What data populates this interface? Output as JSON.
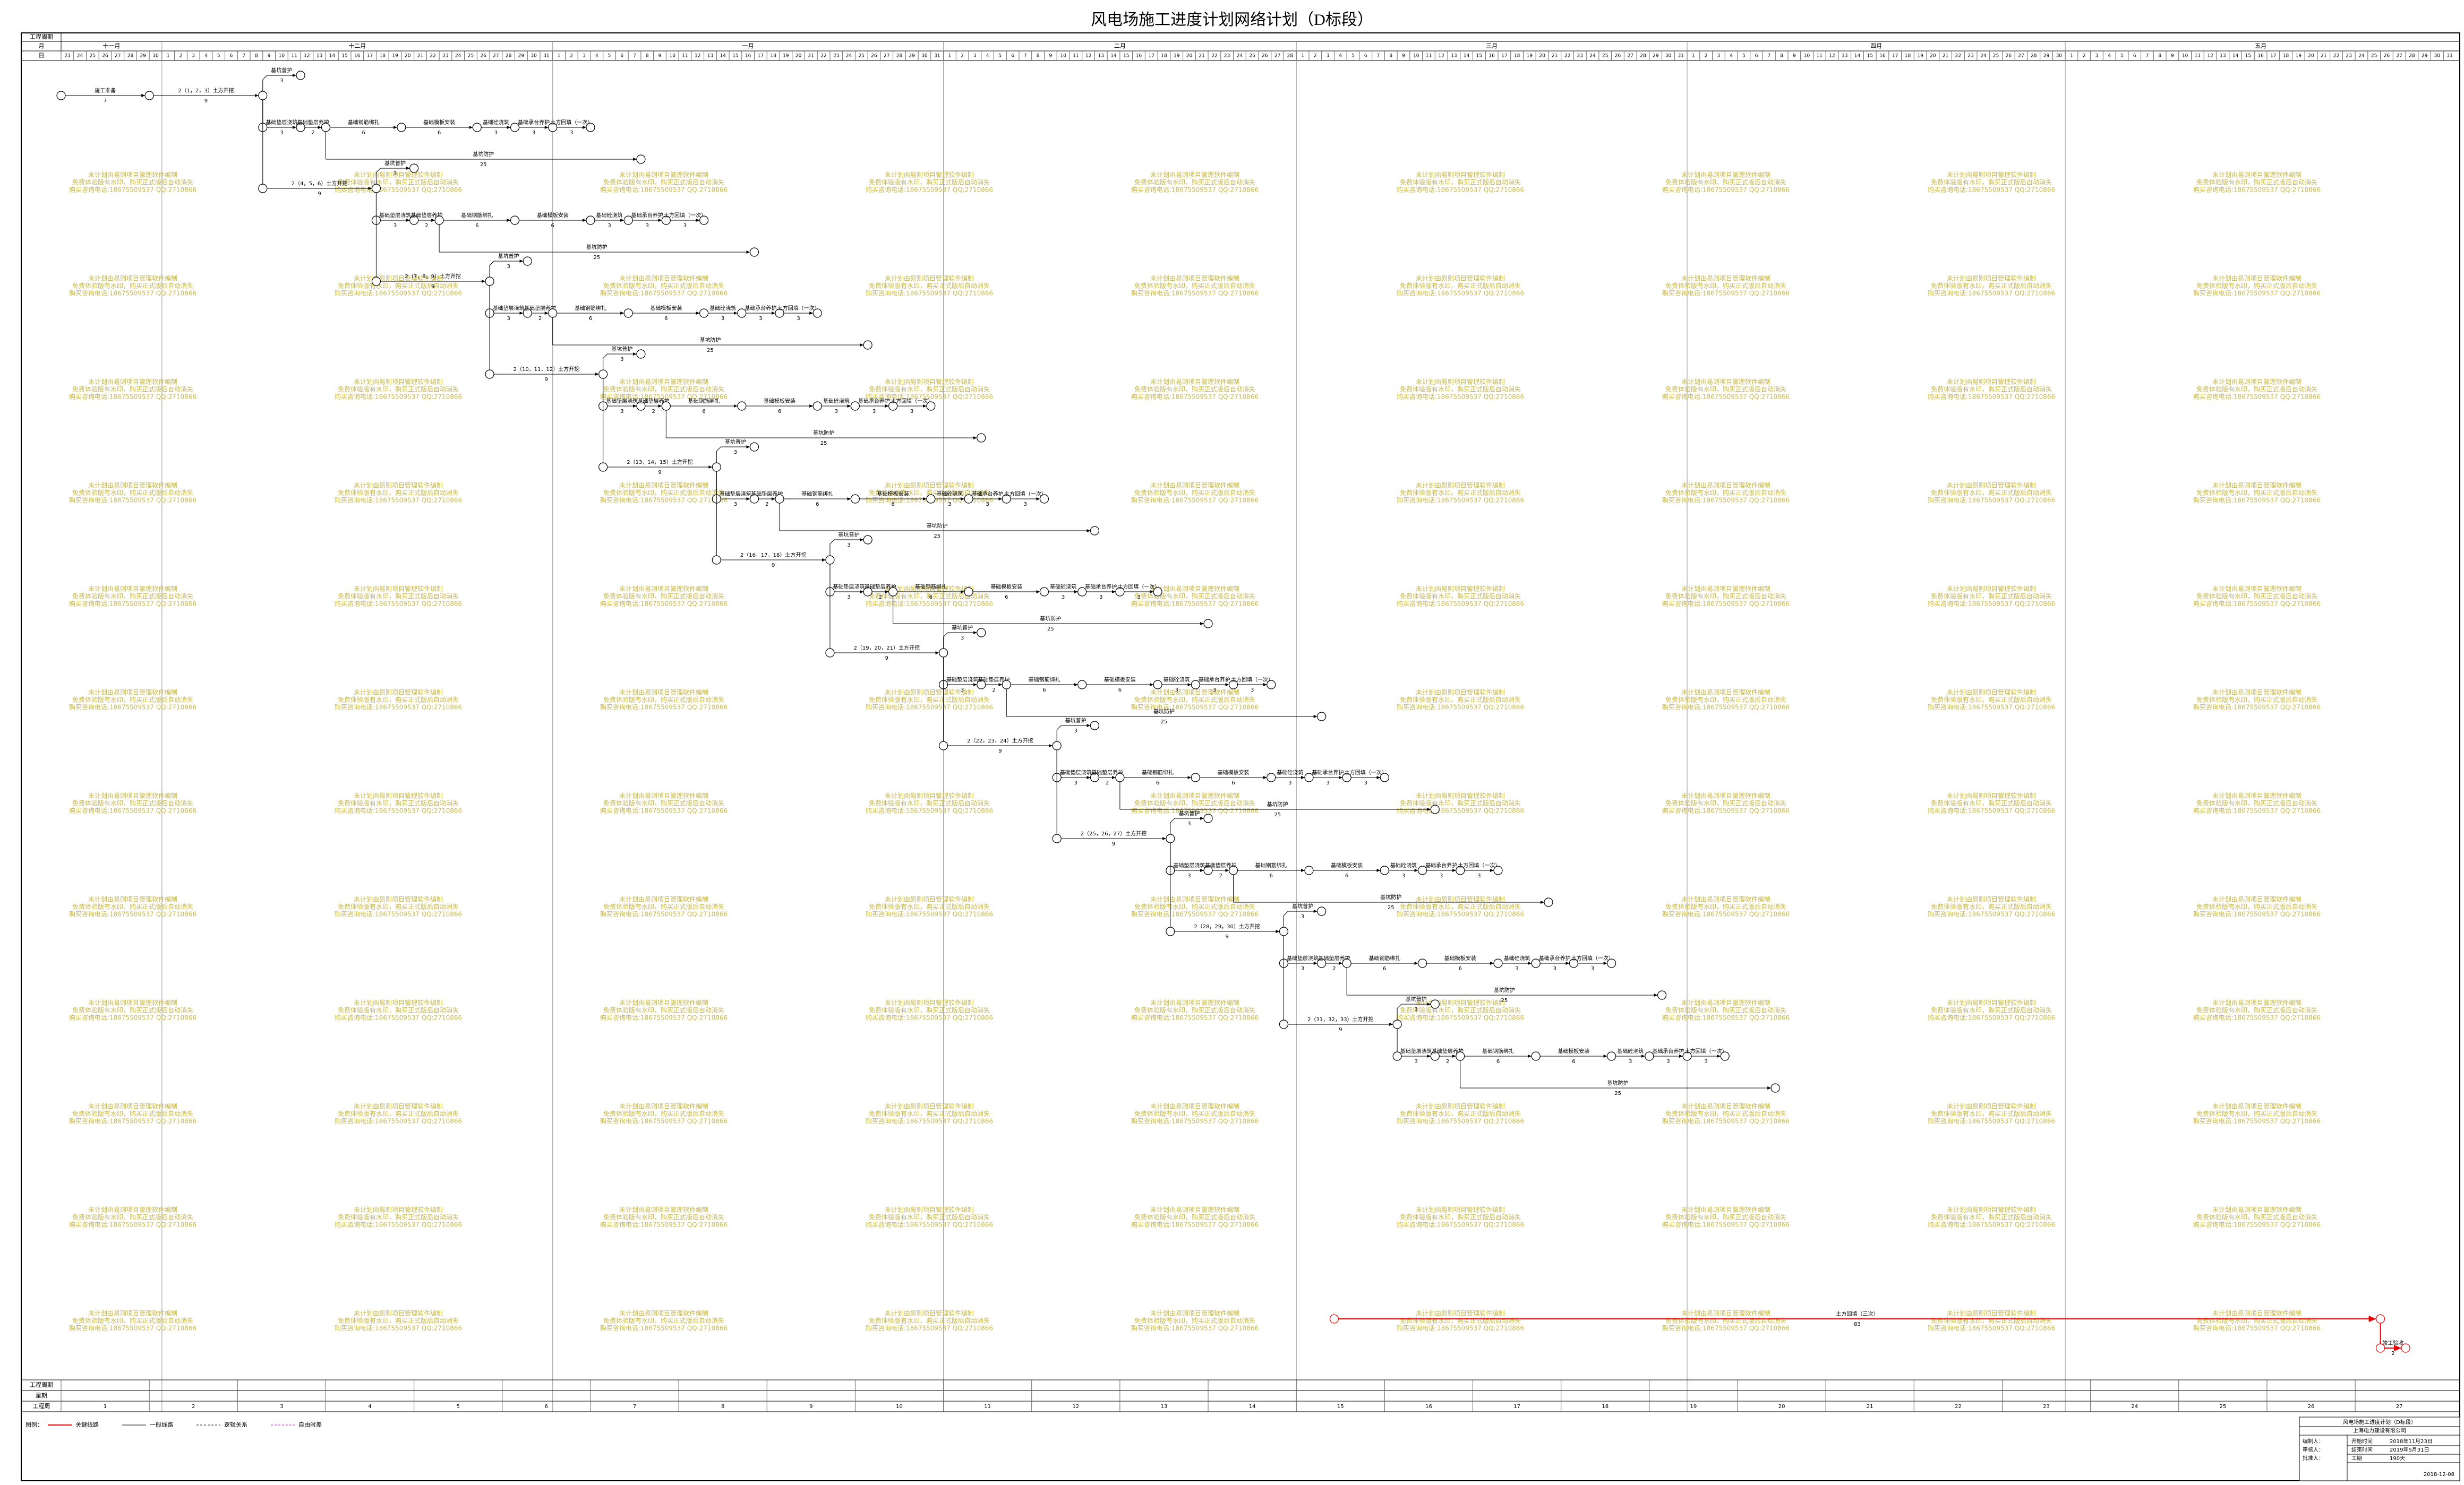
{
  "title": "风电场施工进度计划网络计划（D标段）",
  "header": {
    "period_label": "工程周期",
    "month_label": "月",
    "day_label": "日",
    "months": [
      "十一月",
      "十二月",
      "一月",
      "二月",
      "三月",
      "四月",
      "五月"
    ],
    "days": [
      23,
      24,
      25,
      26,
      27,
      28,
      29,
      30,
      1,
      2,
      3,
      4,
      5,
      6,
      7,
      8,
      9,
      10,
      11,
      12,
      13,
      14,
      15,
      16,
      17,
      18,
      19,
      20,
      21,
      22,
      23,
      24,
      25,
      26,
      27,
      28,
      29,
      30,
      31,
      1,
      2,
      3,
      4,
      5,
      6,
      7,
      8,
      9,
      10,
      11,
      12,
      13,
      14,
      15,
      16,
      17,
      18,
      19,
      20,
      21,
      22,
      23,
      24,
      25,
      26,
      27,
      28,
      29,
      30,
      31,
      1,
      2,
      3,
      4,
      5,
      6,
      7,
      8,
      9,
      10,
      11,
      12,
      13,
      14,
      15,
      16,
      17,
      18,
      19,
      20,
      21,
      22,
      23,
      24,
      25,
      26,
      27,
      28,
      1,
      2,
      3,
      4,
      5,
      6,
      7,
      8,
      9,
      10,
      11,
      12,
      13,
      14,
      15,
      16,
      17,
      18,
      19,
      20,
      21,
      22,
      23,
      24,
      25,
      26,
      27,
      28,
      29,
      30,
      31,
      1,
      2,
      3,
      4,
      5,
      6,
      7,
      8,
      9,
      10,
      11,
      12,
      13,
      14,
      15,
      16,
      17,
      18,
      19,
      20,
      21,
      22,
      23,
      24,
      25,
      26,
      27,
      28,
      29,
      30,
      1,
      2,
      3,
      4,
      5,
      6,
      7,
      8,
      9,
      10,
      11,
      12,
      13,
      14,
      15,
      16,
      17,
      18,
      19,
      20,
      21,
      22,
      23,
      24,
      25,
      26,
      27,
      28,
      29,
      30,
      31
    ]
  },
  "network": {
    "start": {
      "name": "施工准备",
      "duration": 7
    },
    "branches": [
      {
        "name": "2（1，2，3）土方开挖",
        "duration": 9
      },
      {
        "name": "2（4，5，6）土方开挖",
        "duration": 9
      },
      {
        "name": "2（7，8，9）土方开挖",
        "duration": 9
      },
      {
        "name": "2（10，11，12）土方开挖",
        "duration": 9
      },
      {
        "name": "2（13，14，15）土方开挖",
        "duration": 9
      },
      {
        "name": "2（16，17，18）土方开挖",
        "duration": 9
      },
      {
        "name": "2（19，20，21）土方开挖",
        "duration": 9
      },
      {
        "name": "2（22，23，24）土方开挖",
        "duration": 9
      },
      {
        "name": "2（25，26，27）土方开挖",
        "duration": 9
      },
      {
        "name": "2（28，29，30）土方开挖",
        "duration": 9
      },
      {
        "name": "2（31，32，33）土方开挖",
        "duration": 9
      }
    ],
    "guard": {
      "name": "基坑普护",
      "duration": 3
    },
    "chain": [
      {
        "name": "基础垫层浇筑",
        "duration": 3
      },
      {
        "name": "基础垫层养护",
        "duration": 2
      },
      {
        "name": "基础钢筋绑扎",
        "duration": 6
      },
      {
        "name": "基础模板安装",
        "duration": 6
      },
      {
        "name": "基础砼浇筑",
        "duration": 3
      },
      {
        "name": "基础承台养护",
        "duration": 3
      },
      {
        "name": "土方回填（一次）",
        "duration": 3
      }
    ],
    "protect": {
      "name": "基坑防护",
      "duration": 25
    },
    "critical": [
      {
        "name": "土方回填（三次）",
        "duration": 83
      },
      {
        "name": "竣工验收",
        "duration": 2
      }
    ]
  },
  "footer": {
    "period_label": "工程周期",
    "weekday_label": "星期",
    "week_label": "工程周",
    "weeks": [
      1,
      2,
      3,
      4,
      5,
      6,
      7,
      8,
      9,
      10,
      11,
      12,
      13,
      14,
      15,
      16,
      17,
      18,
      19,
      20,
      21,
      22,
      23,
      24,
      25,
      26,
      27
    ]
  },
  "legend": {
    "title": "图例：",
    "items": [
      "关键线路",
      "一般线路",
      "逻辑关系",
      "自由时差"
    ]
  },
  "title_block": {
    "project": "风电场施工进度计划（D标段）",
    "company": "上海电力建设有限公司",
    "signers": [
      "编制人：",
      "审核人：",
      "批准人："
    ],
    "fields": [
      {
        "label": "开始时间",
        "value": "2018年11月23日"
      },
      {
        "label": "结束时间",
        "value": "2019年5月31日"
      },
      {
        "label": "工期",
        "value": "190天"
      }
    ],
    "date": "2018-12-08"
  },
  "watermark": [
    "未计划由易则项目管理软件编制",
    "免费体验版有水印，购买正式版后自动消失",
    "购买咨询电话:18675509537 QQ:2710866"
  ]
}
